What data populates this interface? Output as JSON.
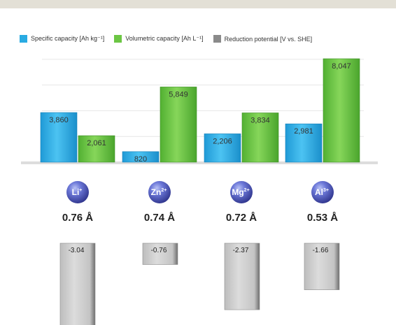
{
  "chart_data": {
    "type": "bar",
    "title": "",
    "categories": [
      "Li",
      "Zn",
      "Mg",
      "Al"
    ],
    "legend": {
      "placement": "top",
      "entries": [
        {
          "label": "Specific capacity [Ah kg⁻¹]",
          "color": "#29abe2"
        },
        {
          "label": "Volumetric capacity [Ah L⁻¹]",
          "color": "#6cc644"
        },
        {
          "label": "Reduction potential [V vs. SHE]",
          "color": "#8a8a8a"
        }
      ]
    },
    "series": [
      {
        "name": "Specific capacity [Ah kg⁻¹]",
        "values": [
          3860,
          820,
          2206,
          2981
        ],
        "labels": [
          "3,860",
          "820",
          "2,206",
          "2,981"
        ],
        "color": "#29abe2"
      },
      {
        "name": "Volumetric capacity [Ah L⁻¹]",
        "values": [
          2061,
          5849,
          3834,
          8047
        ],
        "labels": [
          "2,061",
          "5,849",
          "3,834",
          "8,047"
        ],
        "color": "#6cc644"
      },
      {
        "name": "Reduction potential [V vs. SHE]",
        "values": [
          -3.04,
          -0.76,
          -2.37,
          -1.66
        ],
        "labels": [
          "-3.04",
          "-0.76",
          "-2.37",
          "-1.66"
        ],
        "color": "#c8c8c8"
      }
    ],
    "ions": [
      {
        "symbol": "Li",
        "charge": "+",
        "radius": "0.76 Å"
      },
      {
        "symbol": "Zn",
        "charge": "2+",
        "radius": "0.74 Å"
      },
      {
        "symbol": "Mg",
        "charge": "2+",
        "radius": "0.72 Å"
      },
      {
        "symbol": "Al",
        "charge": "3+",
        "radius": "0.53 Å"
      }
    ],
    "capacity_range": [
      0,
      8700
    ],
    "potential_range": [
      -3.04,
      0
    ],
    "grid": true
  }
}
